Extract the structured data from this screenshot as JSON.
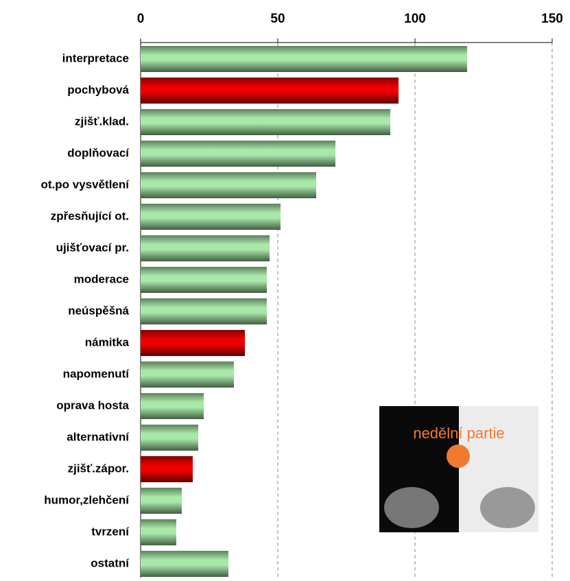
{
  "chart_data": {
    "type": "hbar",
    "categories": [
      "interpretace",
      "pochybová",
      "zjišť.klad.",
      "doplňovací",
      "ot.po vysvětlení",
      "zpřesňující ot.",
      "ujišťovací pr.",
      "moderace",
      "neúspěšná",
      "námitka",
      "napomenutí",
      "oprava hosta",
      "alternativní",
      "zjišť.zápor.",
      "humor,zlehčení",
      "tvrzení",
      "ostatní"
    ],
    "values": [
      119,
      94,
      91,
      71,
      64,
      51,
      47,
      46,
      46,
      38,
      34,
      23,
      21,
      19,
      15,
      13,
      32
    ],
    "colors": [
      "#a8e8a8",
      "#ee0000",
      "#a8e8a8",
      "#a8e8a8",
      "#a8e8a8",
      "#a8e8a8",
      "#a8e8a8",
      "#a8e8a8",
      "#a8e8a8",
      "#ee0000",
      "#a8e8a8",
      "#a8e8a8",
      "#a8e8a8",
      "#ee0000",
      "#a8e8a8",
      "#a8e8a8",
      "#a8e8a8"
    ],
    "xlim": [
      0,
      150
    ],
    "xticks": [
      0,
      50,
      100,
      150
    ],
    "grid": true,
    "inset_text": "nedělní partie"
  }
}
